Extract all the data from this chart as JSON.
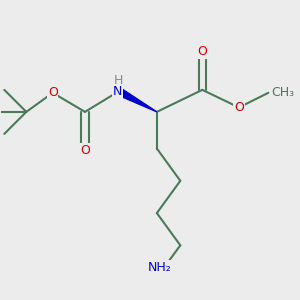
{
  "background_color": "#ececec",
  "bond_color": "#4a7a5a",
  "bond_width": 1.5,
  "atom_colors": {
    "O": "#cc0000",
    "N": "#0000cc",
    "H": "#888888",
    "C": "#4a7a5a"
  },
  "font_size_atom": 9
}
